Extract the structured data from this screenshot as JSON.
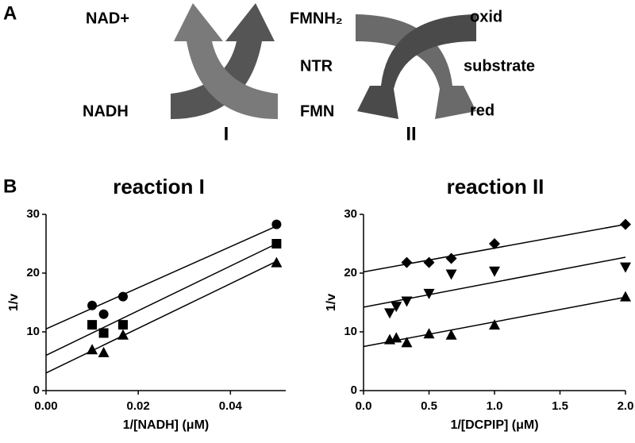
{
  "panel_labels": [
    "A",
    "B"
  ],
  "diagram": {
    "left": [
      "NAD+",
      "NADH"
    ],
    "center": [
      "FMNH₂",
      "NTR",
      "FMN"
    ],
    "right": [
      "oxid",
      "substrate",
      "red"
    ],
    "steps": [
      "I",
      "II"
    ]
  },
  "chart_data": [
    {
      "type": "scatter",
      "title": "reaction I",
      "x_label": "1/[NADH] (μM)",
      "y_label": "1/v",
      "xlim": [
        0,
        0.052
      ],
      "ylim": [
        0,
        30
      ],
      "xticks": [
        {
          "value": 0,
          "label": "0.00"
        },
        0.02,
        0.04
      ],
      "yticks": [
        0,
        10,
        20,
        30
      ],
      "series": [
        {
          "marker": "circle",
          "color": "#000000",
          "x": [
            0.01,
            0.0125,
            0.0167,
            0.05
          ],
          "values": [
            14.5,
            13,
            16,
            28.3
          ],
          "fit_x": [
            0,
            0.05
          ],
          "fit_y": [
            10.5,
            28
          ]
        },
        {
          "marker": "square",
          "color": "#000000",
          "x": [
            0.01,
            0.0125,
            0.0167,
            0.05
          ],
          "values": [
            11.2,
            9.8,
            11.2,
            25
          ],
          "fit_x": [
            0,
            0.05
          ],
          "fit_y": [
            6,
            25
          ]
        },
        {
          "marker": "triangle",
          "color": "#000000",
          "x": [
            0.01,
            0.0125,
            0.0167,
            0.05
          ],
          "values": [
            7,
            6.5,
            9.5,
            21.8
          ],
          "fit_x": [
            0,
            0.05
          ],
          "fit_y": [
            3,
            22
          ]
        }
      ]
    },
    {
      "type": "scatter",
      "title": "reaction II",
      "x_label": "1/[DCPIP] (μM)",
      "y_label": "1/v",
      "xlim": [
        0,
        2
      ],
      "ylim": [
        0,
        30
      ],
      "xticks": [
        {
          "value": 0,
          "label": "0.0"
        },
        0.5,
        {
          "value": 1,
          "label": "1.0"
        },
        1.5,
        {
          "value": 2,
          "label": "2.0"
        }
      ],
      "yticks": [
        0,
        10,
        20,
        30
      ],
      "series": [
        {
          "marker": "diamond",
          "color": "#000000",
          "x": [
            0.33,
            0.5,
            0.67,
            1,
            2
          ],
          "values": [
            21.8,
            21.8,
            22.5,
            25,
            28.3
          ],
          "fit_x": [
            0,
            2
          ],
          "fit_y": [
            20.2,
            28.3
          ]
        },
        {
          "marker": "down-triangle",
          "color": "#000000",
          "x": [
            0.2,
            0.25,
            0.33,
            0.5,
            0.67,
            1,
            2
          ],
          "values": [
            13.2,
            14.3,
            15.2,
            16.5,
            19.8,
            20.3,
            21
          ],
          "fit_x": [
            0,
            2
          ],
          "fit_y": [
            14.2,
            22.7
          ]
        },
        {
          "marker": "triangle",
          "color": "#000000",
          "x": [
            0.2,
            0.25,
            0.33,
            0.5,
            0.67,
            1,
            2
          ],
          "values": [
            8.7,
            9,
            8.2,
            9.7,
            9.5,
            11.2,
            16
          ],
          "fit_x": [
            0,
            2
          ],
          "fit_y": [
            7.5,
            15.9
          ]
        }
      ]
    }
  ]
}
